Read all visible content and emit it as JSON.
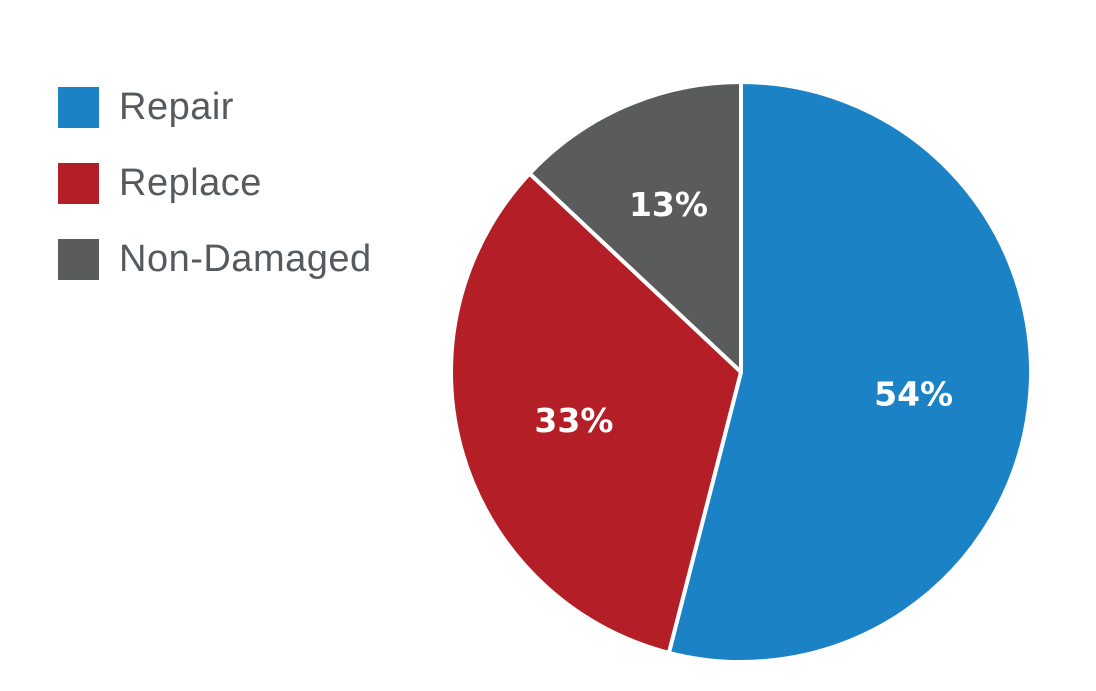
{
  "chart_data": {
    "type": "pie",
    "title": "",
    "legend_position": "top-left",
    "slices": [
      {
        "name": "Repair",
        "value": 54,
        "label": "54%",
        "color": "#1b82c5"
      },
      {
        "name": "Replace",
        "value": 33,
        "label": "33%",
        "color": "#b41f27"
      },
      {
        "name": "Non-Damaged",
        "value": 13,
        "label": "13%",
        "color": "#5a5b5b"
      }
    ]
  }
}
